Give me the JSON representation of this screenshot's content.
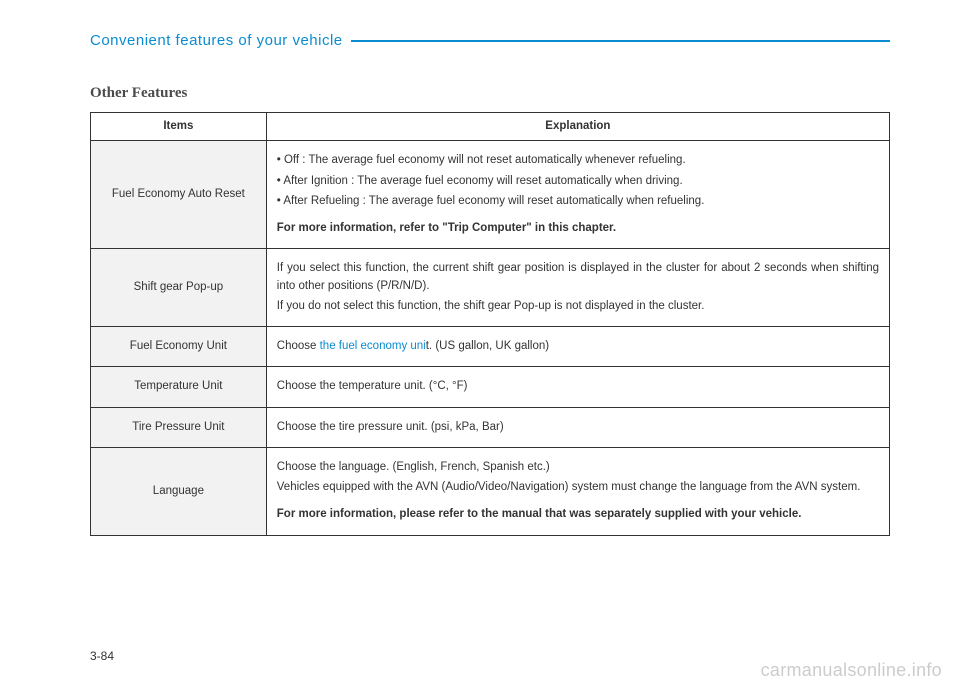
{
  "header": {
    "title": "Convenient features of your vehicle"
  },
  "section": {
    "title": "Other Features"
  },
  "table": {
    "headers": {
      "items": "Items",
      "explanation": "Explanation"
    },
    "rows": {
      "fuel_reset": {
        "item": "Fuel Economy Auto Reset",
        "p1": "• Off : The average fuel economy will not reset automatically whenever refueling.",
        "p2": "• After Ignition : The average fuel economy will reset automatically when driving.",
        "p3": "• After Refueling : The average fuel economy will reset automatically when refueling.",
        "p4": "For more information, refer to \"Trip Computer\" in this chapter."
      },
      "shift_gear": {
        "item": "Shift gear Pop-up",
        "p1": "If you select this function, the current shift gear position is displayed in the cluster for about 2 seconds when shifting into other positions (P/R/N/D).",
        "p2": "If you do not select this function, the shift gear Pop-up is not displayed in the cluster."
      },
      "fuel_unit": {
        "item": "Fuel Economy Unit",
        "prefix": "Choose ",
        "link": "the fuel economy uni",
        "suffix": "t. (US gallon, UK gallon)"
      },
      "temp_unit": {
        "item": "Temperature Unit",
        "text": "Choose the temperature unit. (°C, °F)"
      },
      "tire_unit": {
        "item": "Tire Pressure Unit",
        "text": "Choose the tire pressure unit. (psi, kPa, Bar)"
      },
      "language": {
        "item": "Language",
        "p1": "Choose the language. (English, French, Spanish etc.)",
        "p2": "Vehicles equipped with the AVN (Audio/Video/Navigation) system must change the language from the AVN system.",
        "p3": "For more information, please refer to the manual that was separately supplied with your vehicle."
      }
    }
  },
  "footer": {
    "page_number": "3-84",
    "watermark": "carmanualsonline.info"
  },
  "colors": {
    "accent": "#0a8cd2",
    "border": "#333333",
    "item_bg": "#f2f2f2",
    "watermark": "#cccccc"
  }
}
